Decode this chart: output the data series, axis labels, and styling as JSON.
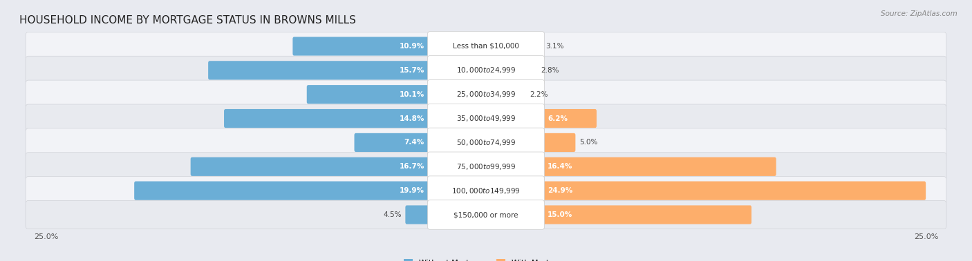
{
  "title": "HOUSEHOLD INCOME BY MORTGAGE STATUS IN BROWNS MILLS",
  "source": "Source: ZipAtlas.com",
  "categories": [
    "Less than $10,000",
    "$10,000 to $24,999",
    "$25,000 to $34,999",
    "$35,000 to $49,999",
    "$50,000 to $74,999",
    "$75,000 to $99,999",
    "$100,000 to $149,999",
    "$150,000 or more"
  ],
  "without_mortgage": [
    10.9,
    15.7,
    10.1,
    14.8,
    7.4,
    16.7,
    19.9,
    4.5
  ],
  "with_mortgage": [
    3.1,
    2.8,
    2.2,
    6.2,
    5.0,
    16.4,
    24.9,
    15.0
  ],
  "max_val": 25.0,
  "color_without": "#6baed6",
  "color_with": "#fdae6b",
  "color_without_light": "#c6dbef",
  "color_with_light": "#fdd0a2",
  "bg_color": "#e8eaf0",
  "row_bg_color": "#f0f1f5",
  "row_bg_color2": "#e2e4ea",
  "label_bg": "#ffffff",
  "title_fontsize": 11,
  "label_fontsize": 7.5,
  "pct_fontsize": 7.5,
  "axis_label_fontsize": 8,
  "legend_fontsize": 8
}
